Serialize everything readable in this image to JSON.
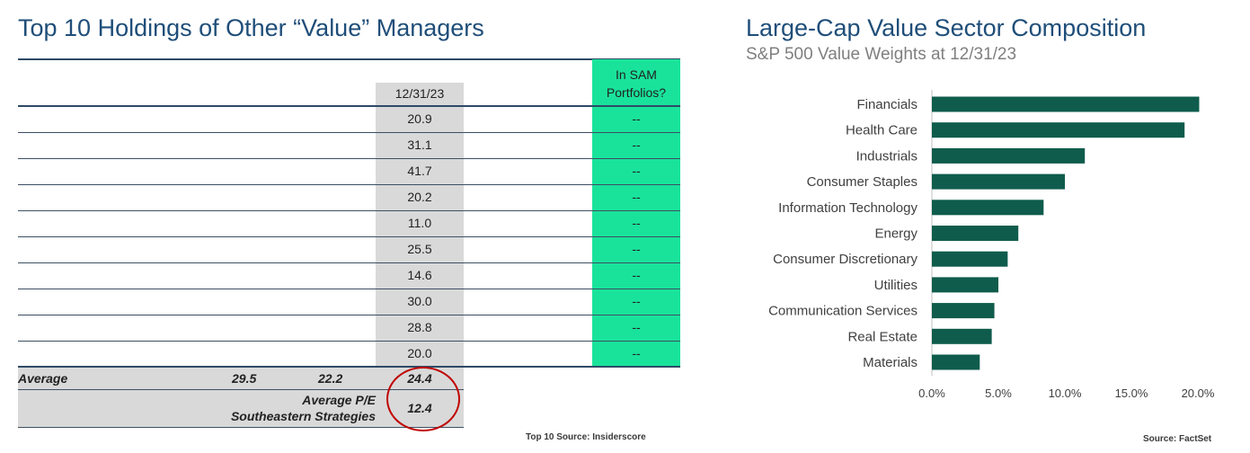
{
  "left": {
    "title": "Top 10 Holdings of Other “Value” Managers",
    "date_header": "12/31/23",
    "sam_header_line1": "In SAM",
    "sam_header_line2": "Portfolios?",
    "pe_values": [
      "20.9",
      "31.1",
      "41.7",
      "20.2",
      "11.0",
      "25.5",
      "14.6",
      "30.0",
      "28.8",
      "20.0"
    ],
    "sam_values": [
      "--",
      "--",
      "--",
      "--",
      "--",
      "--",
      "--",
      "--",
      "--",
      "--"
    ],
    "average_label": "Average",
    "average_values": [
      "29.5",
      "22.2",
      "24.4"
    ],
    "strategies_label_line1": "Average P/E",
    "strategies_label_line2": "Southeastern Strategies",
    "strategies_value": "12.4",
    "source": "Top 10 Source: Insiderscore"
  },
  "right": {
    "source": "Source: FactSet"
  },
  "colors": {
    "title": "#1f4e79",
    "bar": "#0f5c4c",
    "sam_column": "#19e39b",
    "highlight_circle": "#c00000"
  },
  "chart_data": {
    "type": "bar",
    "orientation": "horizontal",
    "title": "Large-Cap Value Sector Composition",
    "subtitle": "S&P 500 Value Weights at 12/31/23",
    "categories": [
      "Financials",
      "Health Care",
      "Industrials",
      "Consumer Staples",
      "Information Technology",
      "Energy",
      "Consumer Discretionary",
      "Utilities",
      "Communication Services",
      "Real Estate",
      "Materials"
    ],
    "values": [
      20.1,
      19.0,
      11.5,
      10.0,
      8.4,
      6.5,
      5.7,
      5.0,
      4.7,
      4.5,
      3.6
    ],
    "xlim": [
      0,
      20
    ],
    "xticks": [
      "0.0%",
      "5.0%",
      "10.0%",
      "15.0%",
      "20.0%"
    ],
    "xtick_values": [
      0,
      5,
      10,
      15,
      20
    ],
    "grid": false,
    "legend": "none"
  }
}
